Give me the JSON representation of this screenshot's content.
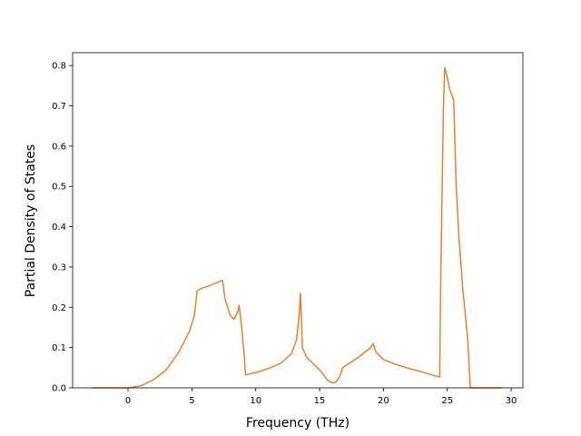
{
  "chart_data": {
    "type": "line",
    "xlabel": "Frequency (THz)",
    "ylabel": "Partial Density of States",
    "x": [
      -2.8,
      0,
      1,
      2,
      3,
      4,
      4.8,
      5.2,
      5.4,
      5.6,
      6.5,
      7.4,
      7.6,
      8,
      8.3,
      8.6,
      8.7,
      8.9,
      9.1,
      9.2,
      10,
      11,
      12,
      12.8,
      13.2,
      13.4,
      13.5,
      13.6,
      13.65,
      14,
      15,
      15.6,
      16,
      16.3,
      16.6,
      16.8,
      18,
      19,
      19.2,
      19.4,
      20,
      21,
      22,
      23,
      24,
      24.4,
      24.5,
      24.7,
      24.8,
      25,
      25.2,
      25.5,
      25.7,
      25.9,
      26.2,
      26.6,
      26.8,
      29.3
    ],
    "series": [
      {
        "color": "#e8822a",
        "values": [
          0,
          0,
          0.005,
          0.02,
          0.045,
          0.09,
          0.14,
          0.18,
          0.24,
          0.245,
          0.255,
          0.267,
          0.22,
          0.18,
          0.17,
          0.19,
          0.205,
          0.15,
          0.08,
          0.032,
          0.038,
          0.048,
          0.062,
          0.085,
          0.12,
          0.18,
          0.235,
          0.15,
          0.1,
          0.075,
          0.045,
          0.02,
          0.012,
          0.015,
          0.03,
          0.05,
          0.075,
          0.1,
          0.11,
          0.09,
          0.07,
          0.058,
          0.048,
          0.04,
          0.03,
          0.027,
          0.3,
          0.7,
          0.795,
          0.77,
          0.74,
          0.715,
          0.5,
          0.38,
          0.25,
          0.12,
          0,
          0
        ]
      }
    ],
    "xlim": [
      -4.34,
      30.92
    ],
    "ylim": [
      0,
      0.832
    ],
    "xticks": [
      0,
      5,
      10,
      15,
      20,
      25,
      30
    ],
    "yticks": [
      {
        "value": 0,
        "label": "0.0"
      },
      0.1,
      0.2,
      0.3,
      0.4,
      0.5,
      0.6,
      0.7,
      0.8
    ]
  }
}
